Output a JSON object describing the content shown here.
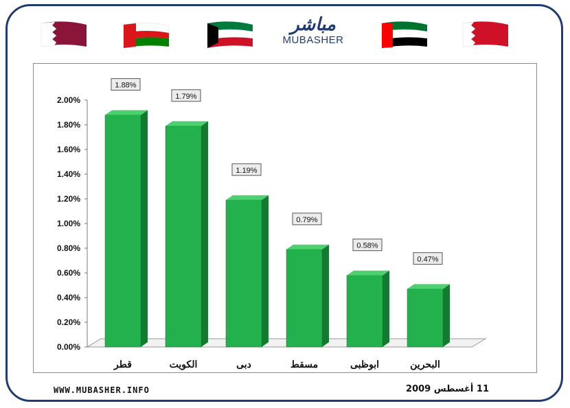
{
  "logo": {
    "arabic": "مباشر",
    "english": "MUBASHER"
  },
  "flags": [
    {
      "name": "qatar-flag-icon",
      "colors": [
        "#ffffff",
        "#8a1538"
      ]
    },
    {
      "name": "oman-flag-icon",
      "colors": [
        "#db161b",
        "#ffffff",
        "#008000"
      ]
    },
    {
      "name": "kuwait-flag-icon",
      "colors": [
        "#007a3d",
        "#ffffff",
        "#ce1126",
        "#000000"
      ]
    },
    {
      "name": "uae-flag-icon",
      "colors": [
        "#00732f",
        "#ffffff",
        "#000000",
        "#ff0000"
      ]
    },
    {
      "name": "bahrain-flag-icon",
      "colors": [
        "#ffffff",
        "#ce1126"
      ]
    }
  ],
  "footer": {
    "website": "WWW.MUBASHER.INFO",
    "date": "11 أغسطس 2009"
  },
  "colors": {
    "bar": "#22b14c",
    "bar_dark": "#137a2f",
    "bar_top": "#4fd06e",
    "frame": "#1f3b73"
  },
  "chart_data": {
    "type": "bar",
    "categories": [
      "قطر",
      "الكويت",
      "دبى",
      "مسقط",
      "ابوظبى",
      "البحرين"
    ],
    "values": [
      1.88,
      1.79,
      1.19,
      0.79,
      0.58,
      0.47
    ],
    "value_labels": [
      "1.88%",
      "1.79%",
      "1.19%",
      "0.79%",
      "0.58%",
      "0.47%"
    ],
    "ylim": [
      0,
      2.0
    ],
    "yticks": [
      "0.00%",
      "0.20%",
      "0.40%",
      "0.60%",
      "0.80%",
      "1.00%",
      "1.20%",
      "1.40%",
      "1.60%",
      "1.80%",
      "2.00%"
    ],
    "grid": false,
    "legend": "none"
  }
}
